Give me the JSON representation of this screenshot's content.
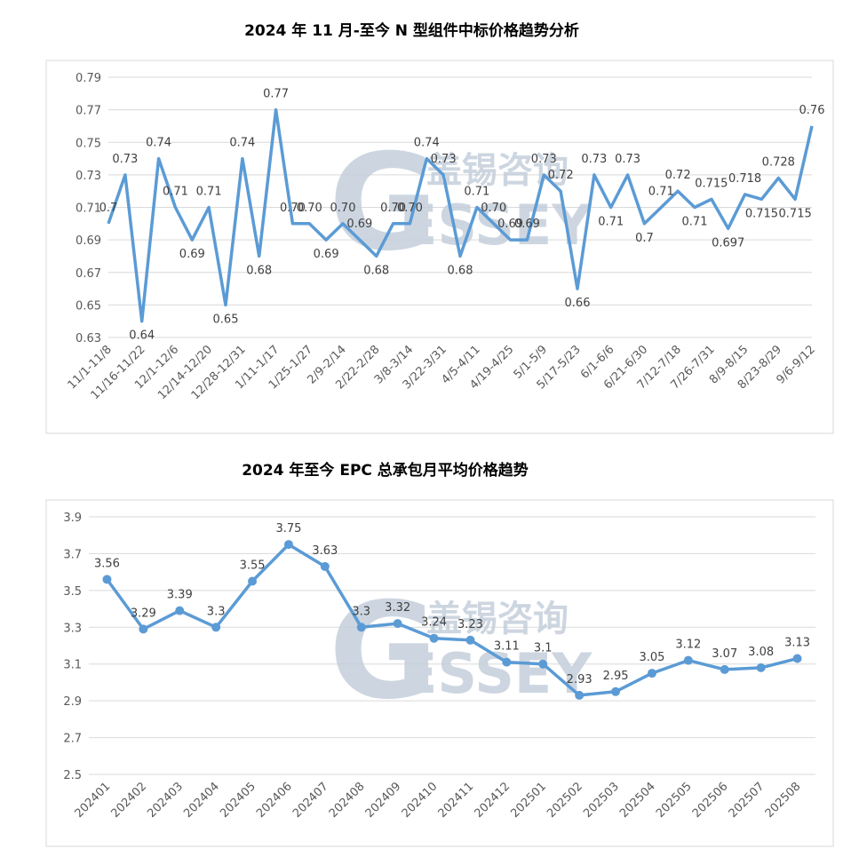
{
  "watermark": {
    "cn": "盖锡咨询",
    "en": "GESSEY",
    "color": "#c5cfdb"
  },
  "chart_data": [
    {
      "type": "line",
      "title": "2024 年 11 月-至今 N 型组件中标价格趋势分析",
      "color": "#5b9bd5",
      "markers": false,
      "ylim": [
        0.63,
        0.79
      ],
      "yticks": [
        "0.79",
        "0.77",
        "0.75",
        "0.73",
        "0.71",
        "0.69",
        "0.67",
        "0.65",
        "0.63"
      ],
      "tick_labels": [
        "11/1-11/8",
        "11/16-11/22",
        "12/1-12/6",
        "12/14-12/20",
        "12/28-12/31",
        "1/11-1/17",
        "1/25-1/27",
        "2/9-2/14",
        "2/22-2/28",
        "3/8-3/14",
        "3/22-3/31",
        "4/5-4/11",
        "4/19-4/25",
        "5/1-5/9",
        "5/17-5/23",
        "6/1-6/6",
        "6/21-6/30",
        "7/12-7/18",
        "7/26-7/31",
        "8/9-8/15",
        "8/23-8/29",
        "9/6-9/12"
      ],
      "values": [
        0.7,
        0.73,
        0.64,
        0.74,
        0.71,
        0.69,
        0.71,
        0.65,
        0.74,
        0.68,
        0.77,
        0.7,
        0.7,
        0.69,
        0.7,
        0.69,
        0.68,
        0.7,
        0.7,
        0.74,
        0.73,
        0.68,
        0.71,
        0.7,
        0.69,
        0.69,
        0.73,
        0.72,
        0.66,
        0.73,
        0.71,
        0.73,
        0.7,
        0.71,
        0.72,
        0.71,
        0.715,
        0.697,
        0.718,
        0.715,
        0.728,
        0.715,
        0.76
      ],
      "labels": [
        "0.7",
        "0.73",
        "0.64",
        "0.74",
        "0.71",
        "0.69",
        "0.71",
        "0.65",
        "0.74",
        "0.68",
        "0.77",
        "0.70",
        "0.70",
        "0.69",
        "0.70",
        "0.69",
        "0.68",
        "0.70",
        "0.70",
        "0.74",
        "0.73",
        "0.68",
        "0.71",
        "0.70",
        "0.69",
        "0.69",
        "0.73",
        "0.72",
        "0.66",
        "0.73",
        "0.71",
        "0.73",
        "0.7",
        "0.71",
        "0.72",
        "0.71",
        "0.715",
        "0.697",
        "0.718",
        "0.715",
        "0.728",
        "0.715",
        "0.76"
      ],
      "grid": true
    },
    {
      "type": "line",
      "title": "2024 年至今 EPC 总承包月平均价格趋势",
      "color": "#5b9bd5",
      "markers": true,
      "ylim": [
        2.5,
        3.9
      ],
      "yticks": [
        "3.9",
        "3.7",
        "3.5",
        "3.3",
        "3.1",
        "2.9",
        "2.7",
        "2.5"
      ],
      "categories": [
        "202401",
        "202402",
        "202403",
        "202404",
        "202405",
        "202406",
        "202407",
        "202408",
        "202409",
        "202410",
        "202411",
        "202412",
        "202501",
        "202502",
        "202503",
        "202504",
        "202505",
        "202506",
        "202507",
        "202508"
      ],
      "values": [
        3.56,
        3.29,
        3.39,
        3.3,
        3.55,
        3.75,
        3.63,
        3.3,
        3.32,
        3.24,
        3.23,
        3.11,
        3.1,
        2.93,
        2.95,
        3.05,
        3.12,
        3.07,
        3.08,
        3.13
      ],
      "labels": [
        "3.56",
        "3.29",
        "3.39",
        "3.3",
        "3.55",
        "3.75",
        "3.63",
        "3.3",
        "3.32",
        "3.24",
        "3.23",
        "3.11",
        "3.1",
        "2.93",
        "2.95",
        "3.05",
        "3.12",
        "3.07",
        "3.08",
        "3.13"
      ],
      "grid": true
    }
  ]
}
